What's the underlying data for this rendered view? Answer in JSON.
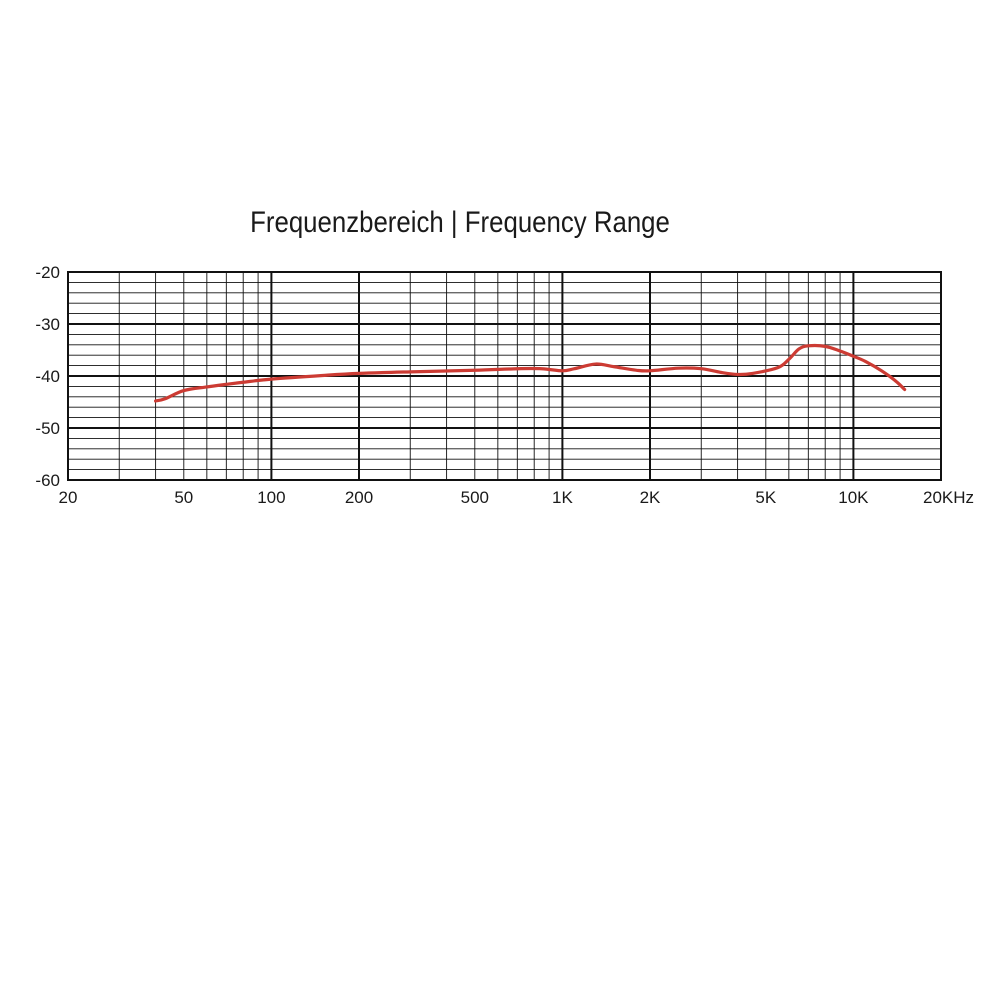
{
  "chart_data": {
    "type": "line",
    "title": "Frequenzbereich | Frequency Range",
    "xscale": "log",
    "xlim": [
      20,
      20000
    ],
    "ylim": [
      -60,
      -20
    ],
    "grid": true,
    "x_ticks": [
      {
        "value": 20,
        "label": "20"
      },
      {
        "value": 50,
        "label": "50"
      },
      {
        "value": 100,
        "label": "100"
      },
      {
        "value": 200,
        "label": "200"
      },
      {
        "value": 500,
        "label": "500"
      },
      {
        "value": 1000,
        "label": "1K"
      },
      {
        "value": 2000,
        "label": "2K"
      },
      {
        "value": 5000,
        "label": "5K"
      },
      {
        "value": 10000,
        "label": "10K"
      },
      {
        "value": 20000,
        "label": "20KHz"
      }
    ],
    "y_ticks": [
      {
        "value": -20,
        "label": "-20"
      },
      {
        "value": -30,
        "label": "-30"
      },
      {
        "value": -40,
        "label": "-40"
      },
      {
        "value": -50,
        "label": "-50"
      },
      {
        "value": -60,
        "label": "-60"
      }
    ],
    "series": [
      {
        "color": "#cc3b33",
        "points": [
          {
            "x": 40,
            "y": -44.8
          },
          {
            "x": 43,
            "y": -44.4
          },
          {
            "x": 50,
            "y": -42.8
          },
          {
            "x": 60,
            "y": -42.1
          },
          {
            "x": 70,
            "y": -41.6
          },
          {
            "x": 80,
            "y": -41.2
          },
          {
            "x": 100,
            "y": -40.6
          },
          {
            "x": 150,
            "y": -39.9
          },
          {
            "x": 200,
            "y": -39.5
          },
          {
            "x": 300,
            "y": -39.2
          },
          {
            "x": 500,
            "y": -38.9
          },
          {
            "x": 700,
            "y": -38.6
          },
          {
            "x": 850,
            "y": -38.6
          },
          {
            "x": 1000,
            "y": -39.0
          },
          {
            "x": 1100,
            "y": -38.6
          },
          {
            "x": 1300,
            "y": -37.7
          },
          {
            "x": 1500,
            "y": -38.2
          },
          {
            "x": 1800,
            "y": -38.9
          },
          {
            "x": 2000,
            "y": -39.0
          },
          {
            "x": 2500,
            "y": -38.5
          },
          {
            "x": 3000,
            "y": -38.6
          },
          {
            "x": 3500,
            "y": -39.3
          },
          {
            "x": 4000,
            "y": -39.7
          },
          {
            "x": 4500,
            "y": -39.5
          },
          {
            "x": 5500,
            "y": -38.4
          },
          {
            "x": 6000,
            "y": -36.8
          },
          {
            "x": 6500,
            "y": -34.8
          },
          {
            "x": 7000,
            "y": -34.2
          },
          {
            "x": 8000,
            "y": -34.3
          },
          {
            "x": 9000,
            "y": -35.2
          },
          {
            "x": 10000,
            "y": -36.2
          },
          {
            "x": 11000,
            "y": -37.2
          },
          {
            "x": 12500,
            "y": -39.0
          },
          {
            "x": 14000,
            "y": -41.0
          },
          {
            "x": 15000,
            "y": -42.6
          }
        ]
      }
    ]
  }
}
